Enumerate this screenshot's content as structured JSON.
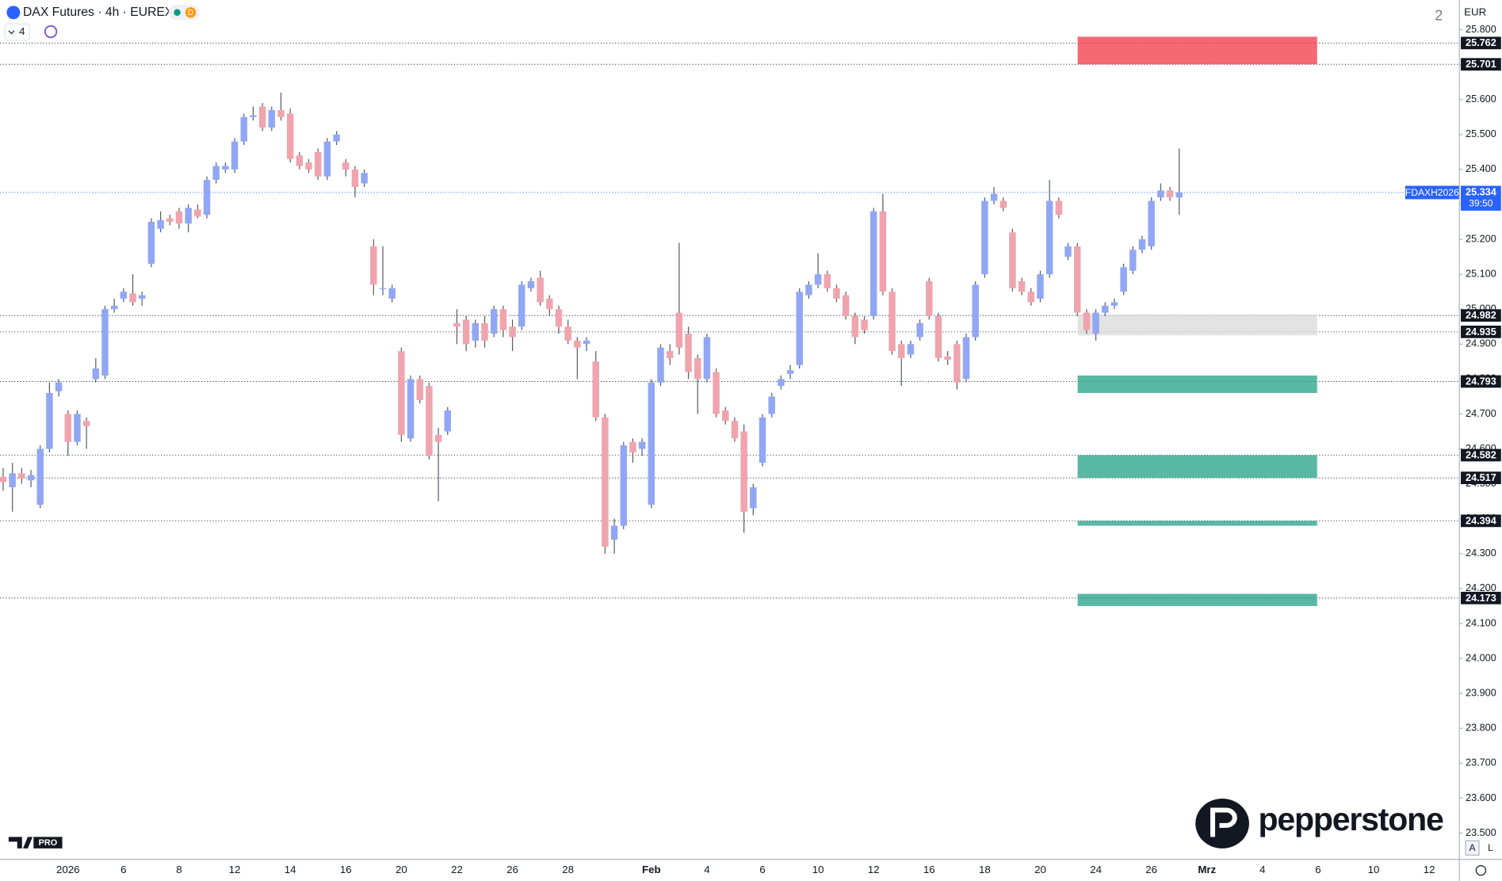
{
  "header": {
    "title": "DAX Futures · 4h · EUREX",
    "badge": "D",
    "indicator_count": "4",
    "corner_number": "2"
  },
  "currency": "EUR",
  "brand": "pepperstone",
  "tv_badge": "PRO",
  "corner_buttons": [
    "A",
    "L"
  ],
  "chart_data": {
    "type": "candlestick",
    "up_color": "#91a7f4",
    "down_color": "#f0a4ad",
    "categories": [
      null,
      null,
      null,
      null,
      null,
      null,
      null,
      "2026",
      null,
      null,
      null,
      null,
      null,
      "6",
      null,
      null,
      null,
      null,
      null,
      "8",
      null,
      null,
      null,
      null,
      null,
      "12",
      null,
      null,
      null,
      null,
      null,
      "14",
      null,
      null,
      null,
      null,
      null,
      "16",
      null,
      null,
      null,
      null,
      null,
      "20",
      null,
      null,
      null,
      null,
      null,
      "22",
      null,
      null,
      null,
      null,
      null,
      "26",
      null,
      null,
      null,
      null,
      null,
      "28",
      null,
      null,
      null,
      null,
      null,
      null,
      null,
      null,
      "Feb",
      null,
      null,
      null,
      null,
      null,
      "4",
      null,
      null,
      null,
      null,
      null,
      "6",
      null,
      null,
      null,
      null,
      null,
      "10",
      null,
      null,
      null,
      null,
      null,
      "12",
      null,
      null,
      null,
      null,
      null,
      "16",
      null,
      null,
      null,
      null,
      null,
      "18",
      null,
      null,
      null,
      null,
      null,
      "20",
      null,
      null,
      null,
      null,
      null,
      "24",
      null,
      null,
      null,
      null,
      null,
      "26",
      null,
      null,
      null,
      null,
      null,
      "Mrz",
      null,
      null,
      null,
      null,
      null,
      "4",
      null,
      null,
      null,
      null,
      null,
      "6",
      null,
      null,
      null,
      null,
      null,
      "10",
      null,
      null,
      null,
      null,
      null,
      "12",
      null,
      null
    ],
    "open": [
      24520,
      24490,
      24530,
      24510,
      24440,
      24600,
      24765,
      24700,
      24620,
      24680,
      24800,
      24810,
      25000,
      25030,
      25045,
      25030,
      25130,
      25230,
      25260,
      25280,
      25245,
      25285,
      25270,
      25370,
      25400,
      25400,
      25480,
      25550,
      25580,
      25520,
      25570,
      25560,
      25440,
      25420,
      25450,
      25380,
      25480,
      25420,
      25400,
      25360,
      25180,
      25060,
      25030,
      24880,
      24630,
      24800,
      24780,
      24640,
      24650,
      24960,
      24970,
      24910,
      24960,
      24930,
      25000,
      24950,
      24950,
      25060,
      25090,
      25030,
      25000,
      24950,
      24910,
      24900,
      24850,
      24690,
      24340,
      24380,
      24620,
      24600,
      24440,
      24790,
      24880,
      24990,
      24930,
      24860,
      24800,
      24820,
      24710,
      24680,
      24650,
      24430,
      24560,
      24700,
      24780,
      24815,
      24840,
      25040,
      25070,
      25100,
      25060,
      25040,
      24980,
      24970,
      24980,
      25280,
      25050,
      24900,
      24870,
      24920,
      25080,
      24980,
      24865,
      24900,
      24800,
      24920,
      25100,
      25310,
      25310,
      25220,
      25080,
      25050,
      25030,
      25100,
      25310,
      25150,
      25180,
      24990,
      24930,
      24990,
      25010,
      25050,
      25110,
      25170,
      25180,
      25320,
      25340,
      25320,
      null,
      null,
      null,
      null,
      null,
      null,
      null,
      null,
      null,
      null,
      null,
      null,
      null,
      null,
      null,
      null,
      null,
      null,
      null,
      null,
      null,
      null,
      null,
      null,
      null,
      null,
      null,
      null,
      null
    ],
    "high": [
      24545,
      24560,
      24545,
      24540,
      24610,
      24790,
      24800,
      24710,
      24710,
      24690,
      24860,
      25010,
      25030,
      25060,
      25100,
      25050,
      25260,
      25280,
      25270,
      25290,
      25300,
      25300,
      25380,
      25420,
      25420,
      25490,
      25560,
      25580,
      25590,
      25580,
      25620,
      25575,
      25450,
      25430,
      25460,
      25490,
      25510,
      25430,
      25410,
      25400,
      25200,
      25180,
      25070,
      24890,
      24810,
      24810,
      24790,
      24660,
      24720,
      25000,
      24980,
      24970,
      24980,
      25010,
      25010,
      24970,
      25080,
      25090,
      25110,
      25040,
      25010,
      24970,
      24920,
      24920,
      24880,
      24700,
      24400,
      24620,
      24630,
      24630,
      24800,
      24900,
      24900,
      25190,
      24950,
      24870,
      24930,
      24830,
      24720,
      24690,
      24670,
      24500,
      24700,
      24760,
      24810,
      24840,
      25060,
      25080,
      25160,
      25110,
      25070,
      25050,
      24990,
      24980,
      25290,
      25330,
      25060,
      24910,
      24910,
      24970,
      25090,
      24990,
      24880,
      24910,
      24930,
      25080,
      25320,
      25350,
      25320,
      25230,
      25090,
      25060,
      25110,
      25370,
      25320,
      25190,
      25190,
      25000,
      25000,
      25020,
      25030,
      25130,
      25180,
      25210,
      25320,
      25360,
      25350,
      25460,
      null,
      null,
      null,
      null,
      null,
      null,
      null,
      null,
      null,
      null,
      null,
      null,
      null,
      null,
      null,
      null,
      null,
      null,
      null,
      null,
      null,
      null,
      null,
      null,
      null,
      null,
      null,
      null,
      null
    ],
    "low": [
      24480,
      24420,
      24500,
      24490,
      24430,
      24590,
      24750,
      24580,
      24610,
      24600,
      24790,
      24800,
      24990,
      25020,
      25010,
      25010,
      25120,
      25220,
      25240,
      25230,
      25220,
      25260,
      25260,
      25360,
      25390,
      25390,
      25470,
      25540,
      25510,
      25510,
      25540,
      25420,
      25400,
      25390,
      25370,
      25370,
      25470,
      25380,
      25320,
      25350,
      25040,
      25040,
      25020,
      24620,
      24620,
      24730,
      24570,
      24450,
      24640,
      24900,
      24880,
      24890,
      24890,
      24920,
      24920,
      24880,
      24940,
      25050,
      25010,
      24980,
      24930,
      24900,
      24800,
      24880,
      24680,
      24300,
      24300,
      24370,
      24560,
      24580,
      24430,
      24780,
      24840,
      24870,
      24800,
      24700,
      24790,
      24690,
      24670,
      24620,
      24360,
      24410,
      24550,
      24690,
      24770,
      24800,
      24830,
      25030,
      25060,
      25050,
      25020,
      24970,
      24900,
      24930,
      24970,
      25040,
      24870,
      24780,
      24860,
      24910,
      24970,
      24850,
      24840,
      24770,
      24790,
      24910,
      25090,
      25300,
      25280,
      25050,
      25040,
      25010,
      25020,
      25090,
      25260,
      25140,
      24980,
      24930,
      24910,
      24980,
      25000,
      25040,
      25100,
      25160,
      25170,
      25310,
      25310,
      25270,
      null,
      null,
      null,
      null,
      null,
      null,
      null,
      null,
      null,
      null,
      null,
      null,
      null,
      null,
      null,
      null,
      null,
      null,
      null,
      null,
      null,
      null,
      null,
      null,
      null,
      null,
      null,
      null,
      null
    ],
    "close": [
      24505,
      24530,
      24515,
      24525,
      24600,
      24760,
      24790,
      24620,
      24700,
      24665,
      24830,
      25000,
      25010,
      25050,
      25020,
      25040,
      25250,
      25255,
      25250,
      25245,
      25290,
      25265,
      25370,
      25410,
      25410,
      25480,
      25550,
      25555,
      25520,
      25570,
      25550,
      25430,
      25410,
      25400,
      25380,
      25480,
      25500,
      25400,
      25350,
      25390,
      25070,
      25060,
      25060,
      24640,
      24800,
      24740,
      24580,
      24620,
      24710,
      24950,
      24900,
      24960,
      24910,
      25000,
      24940,
      24920,
      25070,
      25080,
      25020,
      25000,
      24950,
      24910,
      24890,
      24910,
      24690,
      24320,
      24380,
      24610,
      24590,
      24620,
      24790,
      24890,
      24860,
      24890,
      24820,
      24800,
      24920,
      24700,
      24680,
      24630,
      24420,
      24490,
      24690,
      24750,
      24800,
      24825,
      25050,
      25070,
      25100,
      25060,
      25030,
      24980,
      24920,
      24940,
      25280,
      25050,
      24880,
      24860,
      24900,
      24960,
      24980,
      24860,
      24855,
      24790,
      24920,
      25070,
      25310,
      25330,
      25290,
      25060,
      25050,
      25020,
      25100,
      25310,
      25270,
      25180,
      24990,
      24940,
      24990,
      25010,
      25020,
      25120,
      25170,
      25200,
      25310,
      25340,
      25320,
      25334,
      null,
      null,
      null,
      null,
      null,
      null,
      null,
      null,
      null,
      null,
      null,
      null,
      null,
      null,
      null,
      null,
      null,
      null,
      null,
      null,
      null,
      null,
      null,
      null,
      null,
      null,
      null,
      null,
      null
    ],
    "ylim": [
      23426,
      25885
    ],
    "yticks": [
      {
        "value": 23500,
        "label": "23.500"
      },
      {
        "value": 23600,
        "label": "23.600"
      },
      {
        "value": 23700,
        "label": "23.700"
      },
      {
        "value": 23800,
        "label": "23.800"
      },
      {
        "value": 23900,
        "label": "23.900"
      },
      {
        "value": 24000,
        "label": "24.000"
      },
      {
        "value": 24100,
        "label": "24.100"
      },
      {
        "value": 24200,
        "label": "24.200"
      },
      {
        "value": 24300,
        "label": "24.300"
      },
      {
        "value": 24400,
        "label": "24.400"
      },
      {
        "value": 24500,
        "label": "24.500"
      },
      {
        "value": 24600,
        "label": "24.600"
      },
      {
        "value": 24700,
        "label": "24.700"
      },
      {
        "value": 24800,
        "label": "24.800"
      },
      {
        "value": 24900,
        "label": "24.900"
      },
      {
        "value": 25000,
        "label": "25.000"
      },
      {
        "value": 25100,
        "label": "25.100"
      },
      {
        "value": 25200,
        "label": "25.200"
      },
      {
        "value": 25300,
        "label": "25.300"
      },
      {
        "value": 25400,
        "label": "25.400"
      },
      {
        "value": 25500,
        "label": "25.500"
      },
      {
        "value": 25600,
        "label": "25.600"
      },
      {
        "value": 25700,
        "label": "25.700"
      },
      {
        "value": 25800,
        "label": "25.800"
      }
    ],
    "levels": [
      {
        "value": 25762,
        "label": "25.762"
      },
      {
        "value": 25701,
        "label": "25.701"
      },
      {
        "value": 24982,
        "label": "24.982"
      },
      {
        "value": 24935,
        "label": "24.935"
      },
      {
        "value": 24793,
        "label": "24.793"
      },
      {
        "value": 24582,
        "label": "24.582"
      },
      {
        "value": 24517,
        "label": "24.517"
      },
      {
        "value": 24394,
        "label": "24.394"
      },
      {
        "value": 24173,
        "label": "24.173"
      }
    ],
    "last_price": {
      "value": 25334,
      "label": "25.334",
      "symbol": "FDAXH2026",
      "countdown": "39:50"
    },
    "zones": [
      {
        "from": 25701,
        "to": 25780,
        "color": "#f23645"
      },
      {
        "from": 24925,
        "to": 24985,
        "color": "#d9d9d9"
      },
      {
        "from": 24760,
        "to": 24810,
        "color": "#22a085"
      },
      {
        "from": 24517,
        "to": 24582,
        "color": "#22a085"
      },
      {
        "from": 24380,
        "to": 24394,
        "color": "#22a085"
      },
      {
        "from": 24150,
        "to": 24185,
        "color": "#22a085"
      }
    ]
  }
}
